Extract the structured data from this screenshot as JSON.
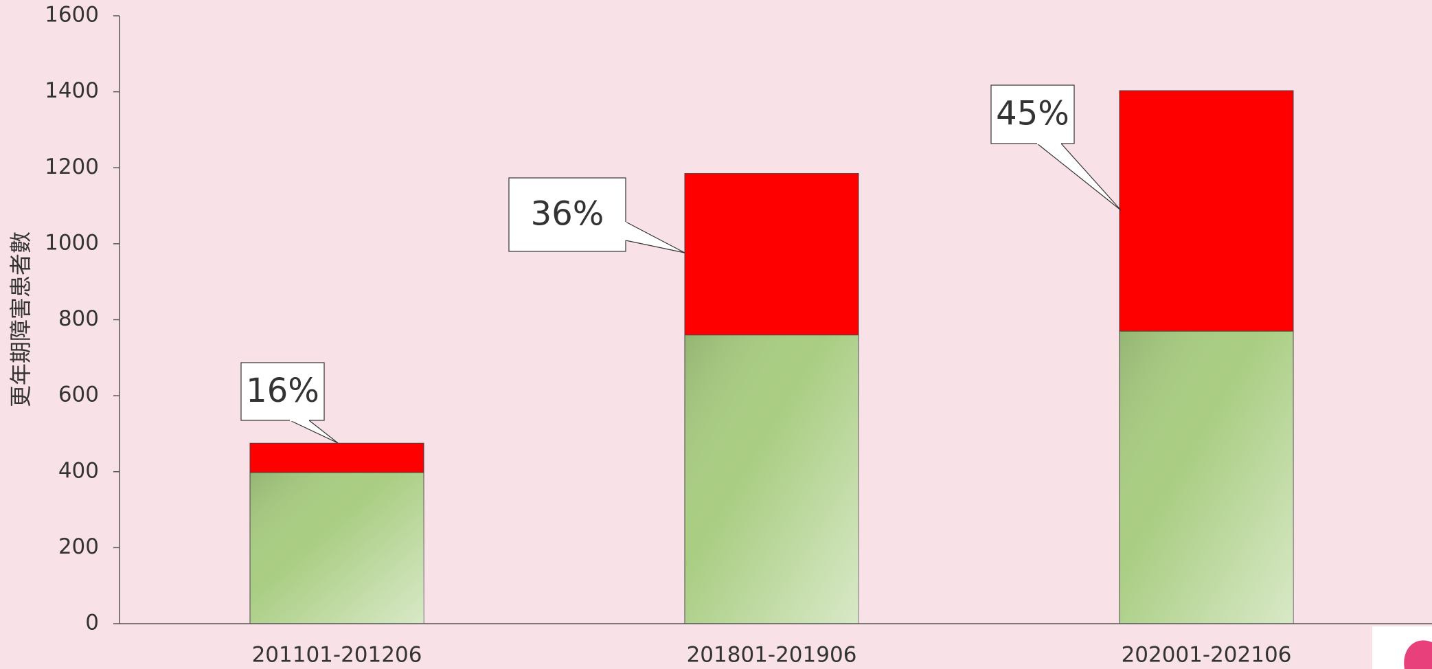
{
  "chart_data": {
    "type": "stacked_bar",
    "y_axis_label": "更年期障害患者數",
    "categories": [
      "201101-201206",
      "201801-201906",
      "202001-202106"
    ],
    "series": [
      {
        "color": "#a9cd82",
        "values": [
          398,
          760,
          770
        ]
      },
      {
        "color": "#ff0000",
        "values": [
          77,
          425,
          633
        ]
      }
    ],
    "annotations": [
      "16%",
      "36%",
      "45%"
    ],
    "ylim": [
      0,
      1600
    ],
    "yticks": [
      0,
      200,
      400,
      600,
      800,
      1000,
      1200,
      1400,
      1600
    ],
    "grid": false
  }
}
